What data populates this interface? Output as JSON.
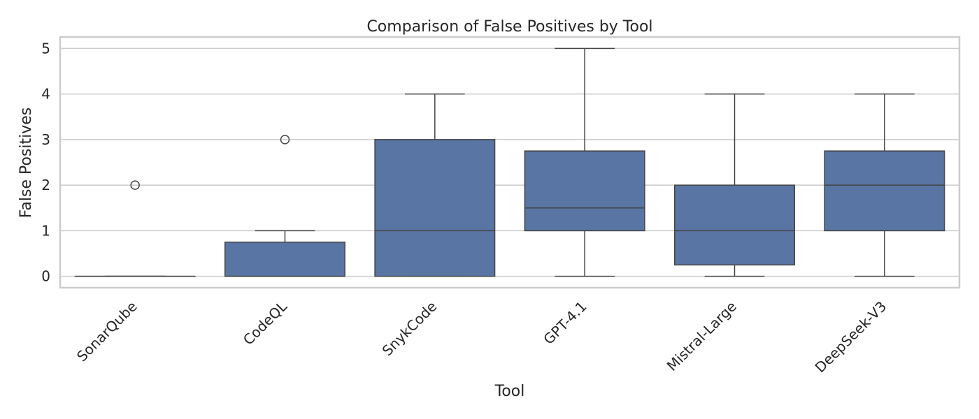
{
  "chart_data": {
    "type": "box",
    "title": "Comparison of False Positives by Tool",
    "xlabel": "Tool",
    "ylabel": "False Positives",
    "ylim": [
      -0.25,
      5.25
    ],
    "yticks": [
      0,
      1,
      2,
      3,
      4,
      5
    ],
    "grid": true,
    "box_color": "#5975a4",
    "line_color": "#444444",
    "categories": [
      "SonarQube",
      "CodeQL",
      "SnykCode",
      "GPT-4.1",
      "Mistral-Large",
      "DeepSeek-V3"
    ],
    "boxes": [
      {
        "name": "SonarQube",
        "whisker_low": 0,
        "q1": 0,
        "median": 0,
        "q3": 0,
        "whisker_high": 0,
        "outliers": [
          2
        ]
      },
      {
        "name": "CodeQL",
        "whisker_low": 0,
        "q1": 0,
        "median": 0,
        "q3": 0.75,
        "whisker_high": 1,
        "outliers": [
          3
        ]
      },
      {
        "name": "SnykCode",
        "whisker_low": 0,
        "q1": 0,
        "median": 1,
        "q3": 3,
        "whisker_high": 4,
        "outliers": []
      },
      {
        "name": "GPT-4.1",
        "whisker_low": 0,
        "q1": 1,
        "median": 1.5,
        "q3": 2.75,
        "whisker_high": 5,
        "outliers": []
      },
      {
        "name": "Mistral-Large",
        "whisker_low": 0,
        "q1": 0.25,
        "median": 1,
        "q3": 2,
        "whisker_high": 4,
        "outliers": []
      },
      {
        "name": "DeepSeek-V3",
        "whisker_low": 0,
        "q1": 1,
        "median": 2,
        "q3": 2.75,
        "whisker_high": 4,
        "outliers": []
      }
    ]
  }
}
